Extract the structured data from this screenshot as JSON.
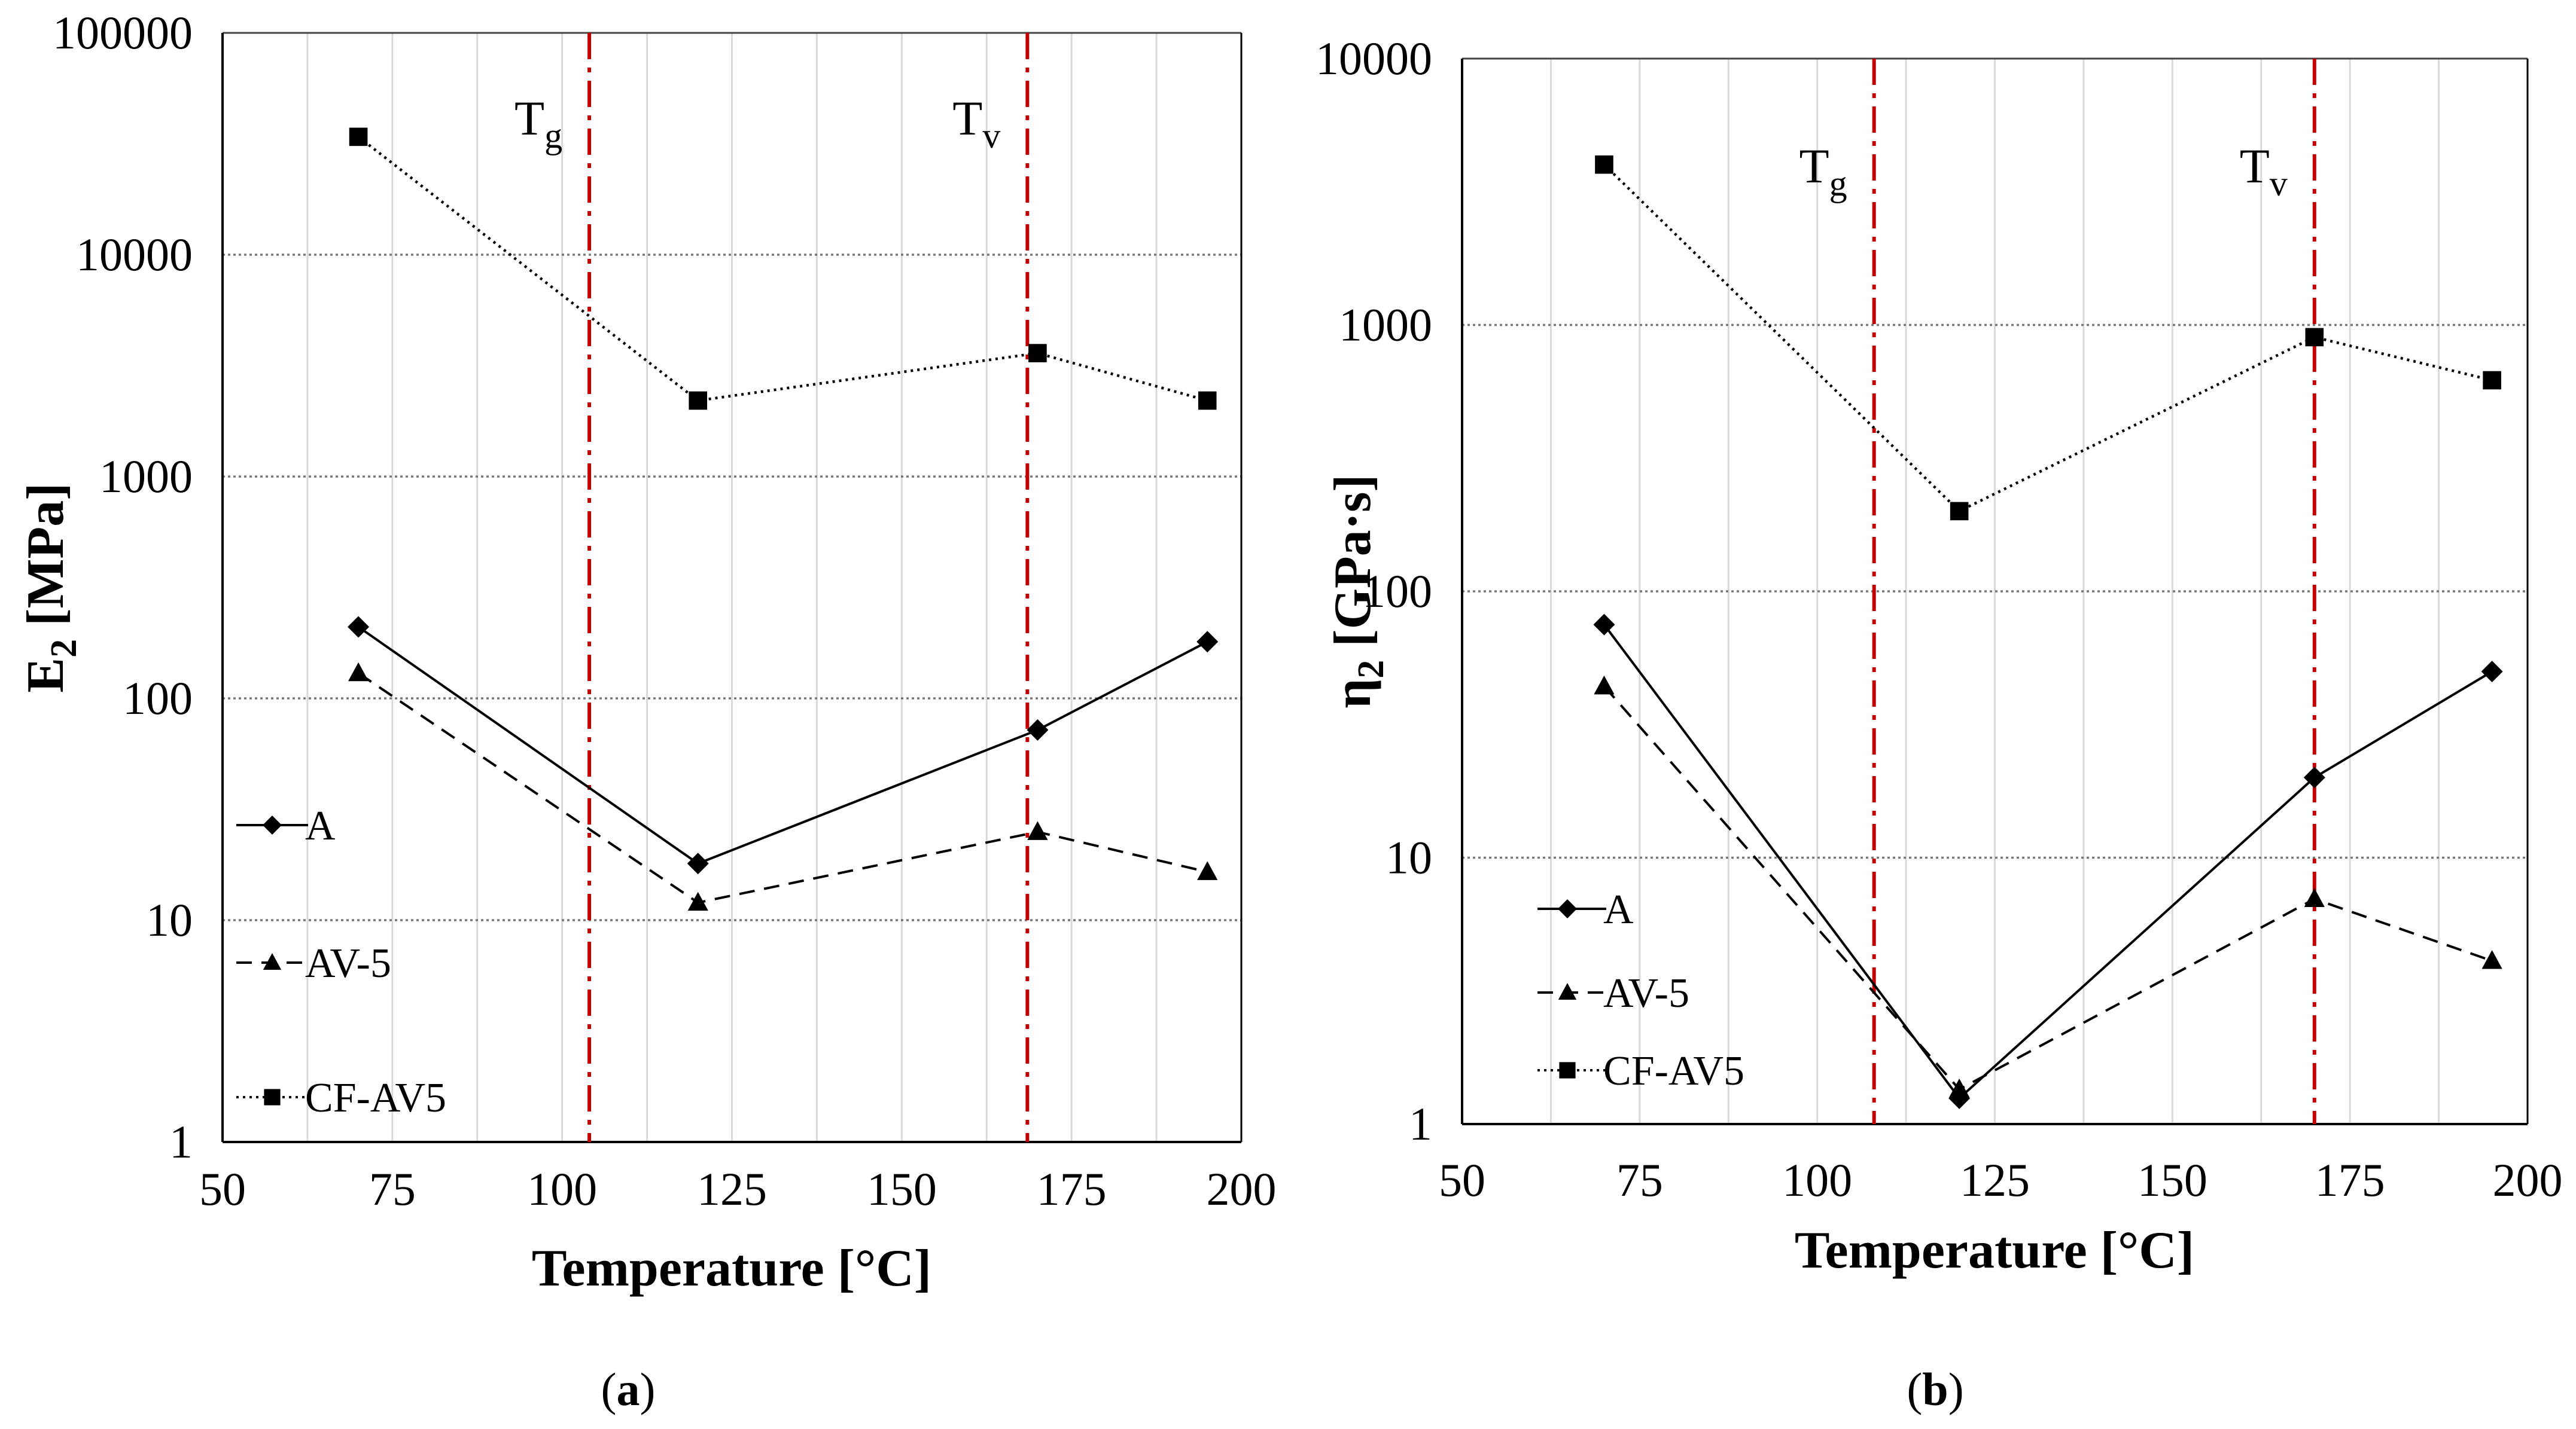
{
  "figure": {
    "panels": [
      "a",
      "b"
    ],
    "colors": {
      "grid_major": "#777777",
      "grid_minor": "#d9d9d9",
      "marker_line": "#c00000",
      "series": "#000000"
    }
  },
  "chart_data": [
    {
      "type": "line",
      "panel_label": "a",
      "xlabel": "Temperature [°C]",
      "ylabel_main": "E",
      "ylabel_sub": "2",
      "ylabel_unit": " [MPa]",
      "y_scale": "log",
      "xlim": [
        50,
        200
      ],
      "ylim": [
        1,
        100000
      ],
      "x_ticks": [
        50,
        75,
        100,
        125,
        150,
        175,
        200
      ],
      "y_ticks": [
        1,
        10,
        100,
        1000,
        10000,
        100000
      ],
      "x_tick_labels": [
        "50",
        "75",
        "100",
        "125",
        "150",
        "175",
        "200"
      ],
      "y_tick_labels": [
        "1",
        "10",
        "100",
        "1000",
        "10000",
        "100000"
      ],
      "x": [
        70,
        120,
        170,
        195
      ],
      "series": [
        {
          "name": "A",
          "marker": "diamond",
          "dash": "solid",
          "values": [
            210,
            18,
            72,
            180
          ]
        },
        {
          "name": "AV-5",
          "marker": "triangle",
          "dash": "dashed",
          "values": [
            130,
            12,
            25,
            16.5
          ]
        },
        {
          "name": "CF-AV5",
          "marker": "square",
          "dash": "dotted",
          "values": [
            34000,
            2200,
            3600,
            2200
          ]
        }
      ],
      "vlines": [
        {
          "name": "Tg",
          "main": "T",
          "sub": "g",
          "x": 104
        },
        {
          "name": "Tv",
          "main": "T",
          "sub": "v",
          "x": 168.5
        }
      ],
      "legend_position": "left"
    },
    {
      "type": "line",
      "panel_label": "b",
      "xlabel": "Temperature [°C]",
      "ylabel_main": "η",
      "ylabel_sub": "2",
      "ylabel_unit": " [GPa·s]",
      "y_scale": "log",
      "xlim": [
        50,
        200
      ],
      "ylim": [
        1,
        10000
      ],
      "x_ticks": [
        50,
        75,
        100,
        125,
        150,
        175,
        200
      ],
      "y_ticks": [
        1,
        10,
        100,
        1000,
        10000
      ],
      "x_tick_labels": [
        "50",
        "75",
        "100",
        "125",
        "150",
        "175",
        "200"
      ],
      "y_tick_labels": [
        "1",
        "10",
        "100",
        "1000",
        "10000"
      ],
      "x": [
        70,
        120,
        170,
        195
      ],
      "series": [
        {
          "name": "A",
          "marker": "diamond",
          "dash": "solid",
          "values": [
            75,
            1.25,
            20,
            50
          ]
        },
        {
          "name": "AV-5",
          "marker": "triangle",
          "dash": "dashed",
          "values": [
            44,
            1.35,
            7,
            4.1
          ]
        },
        {
          "name": "CF-AV5",
          "marker": "square",
          "dash": "dotted",
          "values": [
            4000,
            200,
            900,
            620
          ]
        }
      ],
      "vlines": [
        {
          "name": "Tg",
          "main": "T",
          "sub": "g",
          "x": 108
        },
        {
          "name": "Tv",
          "main": "T",
          "sub": "v",
          "x": 170
        }
      ],
      "legend_position": "lower-left"
    }
  ]
}
